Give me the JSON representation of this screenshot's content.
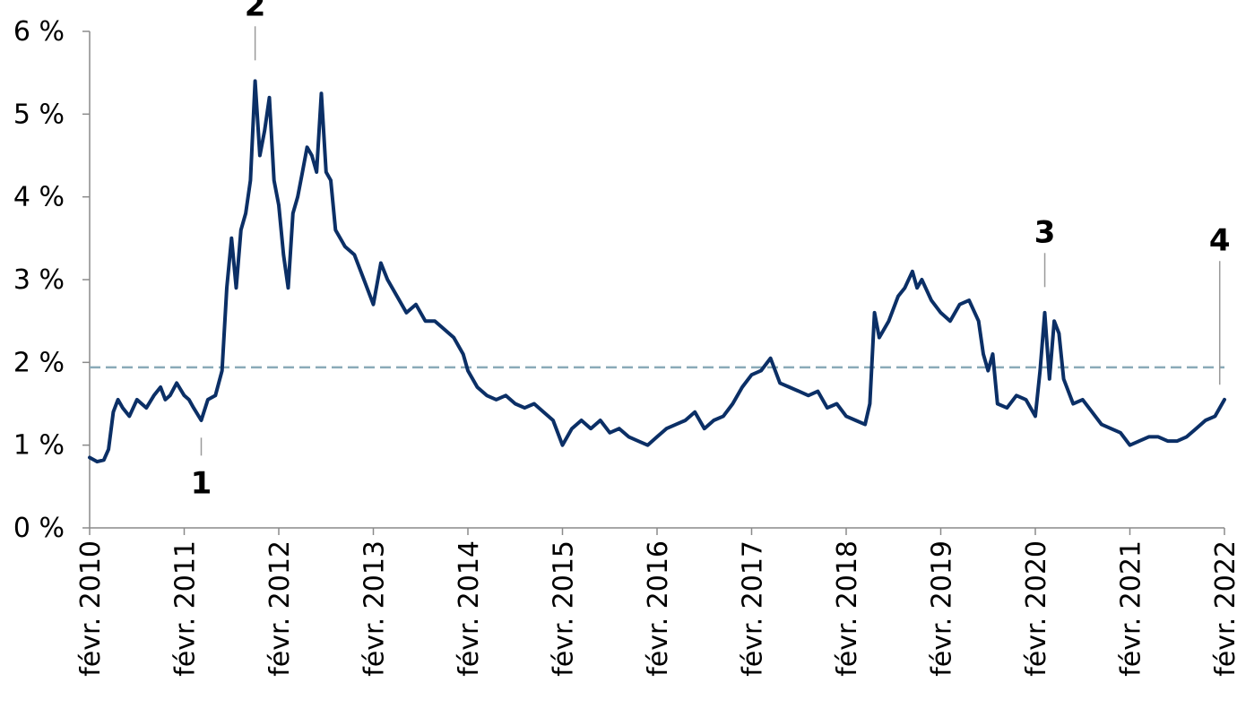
{
  "chart_data": {
    "type": "line",
    "y_tick_labels": [
      "0 %",
      "1 %",
      "2 %",
      "3 %",
      "4 %",
      "5 %",
      "6 %"
    ],
    "ylim": [
      0,
      6
    ],
    "x_tick_labels": [
      "févr. 2010",
      "févr. 2011",
      "févr. 2012",
      "févr. 2013",
      "févr. 2014",
      "févr. 2015",
      "févr. 2016",
      "févr. 2017",
      "févr. 2018",
      "févr. 2019",
      "févr. 2020",
      "févr. 2021",
      "févr. 2022"
    ],
    "xlim": [
      2010.0,
      2022.0
    ],
    "reference_line": {
      "value": 1.94,
      "style": "dashed",
      "color": "#8aaab8"
    },
    "series_color": "#0b2f66",
    "grid": false,
    "annotations": [
      {
        "label": "1",
        "x": 2011.18,
        "y": 1.22,
        "position": "below"
      },
      {
        "label": "2",
        "x": 2011.75,
        "y": 5.52,
        "position": "above"
      },
      {
        "label": "3",
        "x": 2020.1,
        "y": 2.78,
        "position": "above"
      },
      {
        "label": "4",
        "x": 2021.95,
        "y": 1.6,
        "position": "above"
      }
    ],
    "series": [
      {
        "x": [
          2010.0,
          2010.08,
          2010.15,
          2010.2,
          2010.25,
          2010.3,
          2010.35,
          2010.42,
          2010.5,
          2010.55,
          2010.6,
          2010.68,
          2010.75,
          2010.8,
          2010.85,
          2010.92,
          2011.0,
          2011.05,
          2011.1,
          2011.18,
          2011.25,
          2011.33,
          2011.4,
          2011.45,
          2011.5,
          2011.55,
          2011.6,
          2011.65,
          2011.7,
          2011.75,
          2011.8,
          2011.85,
          2011.9,
          2011.95,
          2012.0,
          2012.05,
          2012.1,
          2012.15,
          2012.2,
          2012.25,
          2012.3,
          2012.35,
          2012.4,
          2012.45,
          2012.5,
          2012.55,
          2012.6,
          2012.7,
          2012.8,
          2012.9,
          2013.0,
          2013.08,
          2013.15,
          2013.25,
          2013.35,
          2013.45,
          2013.55,
          2013.65,
          2013.75,
          2013.85,
          2013.95,
          2014.0,
          2014.1,
          2014.2,
          2014.3,
          2014.4,
          2014.5,
          2014.6,
          2014.7,
          2014.8,
          2014.9,
          2015.0,
          2015.1,
          2015.2,
          2015.3,
          2015.4,
          2015.5,
          2015.6,
          2015.7,
          2015.8,
          2015.9,
          2016.0,
          2016.1,
          2016.2,
          2016.3,
          2016.4,
          2016.5,
          2016.6,
          2016.7,
          2016.8,
          2016.9,
          2017.0,
          2017.1,
          2017.2,
          2017.3,
          2017.4,
          2017.5,
          2017.6,
          2017.7,
          2017.8,
          2017.9,
          2018.0,
          2018.1,
          2018.2,
          2018.25,
          2018.3,
          2018.35,
          2018.45,
          2018.55,
          2018.62,
          2018.7,
          2018.75,
          2018.8,
          2018.9,
          2019.0,
          2019.1,
          2019.2,
          2019.3,
          2019.4,
          2019.45,
          2019.5,
          2019.55,
          2019.6,
          2019.7,
          2019.8,
          2019.9,
          2020.0,
          2020.05,
          2020.1,
          2020.15,
          2020.2,
          2020.25,
          2020.3,
          2020.4,
          2020.5,
          2020.6,
          2020.7,
          2020.8,
          2020.9,
          2021.0,
          2021.1,
          2021.2,
          2021.3,
          2021.4,
          2021.5,
          2021.6,
          2021.7,
          2021.8,
          2021.9,
          2022.0
        ],
        "y": [
          0.85,
          0.8,
          0.82,
          0.95,
          1.4,
          1.55,
          1.45,
          1.35,
          1.55,
          1.5,
          1.45,
          1.6,
          1.7,
          1.55,
          1.6,
          1.75,
          1.6,
          1.55,
          1.45,
          1.3,
          1.55,
          1.6,
          1.9,
          2.9,
          3.5,
          2.9,
          3.6,
          3.8,
          4.2,
          5.4,
          4.5,
          4.8,
          5.2,
          4.2,
          3.9,
          3.3,
          2.9,
          3.8,
          4.0,
          4.3,
          4.6,
          4.5,
          4.3,
          5.25,
          4.3,
          4.2,
          3.6,
          3.4,
          3.3,
          3.0,
          2.7,
          3.2,
          3.0,
          2.8,
          2.6,
          2.7,
          2.5,
          2.5,
          2.4,
          2.3,
          2.1,
          1.9,
          1.7,
          1.6,
          1.55,
          1.6,
          1.5,
          1.45,
          1.5,
          1.4,
          1.3,
          1.0,
          1.2,
          1.3,
          1.2,
          1.3,
          1.15,
          1.2,
          1.1,
          1.05,
          1.0,
          1.1,
          1.2,
          1.25,
          1.3,
          1.4,
          1.2,
          1.3,
          1.35,
          1.5,
          1.7,
          1.85,
          1.9,
          2.05,
          1.75,
          1.7,
          1.65,
          1.6,
          1.65,
          1.45,
          1.5,
          1.35,
          1.3,
          1.25,
          1.5,
          2.6,
          2.3,
          2.5,
          2.8,
          2.9,
          3.1,
          2.9,
          3.0,
          2.75,
          2.6,
          2.5,
          2.7,
          2.75,
          2.5,
          2.1,
          1.9,
          2.1,
          1.5,
          1.45,
          1.6,
          1.55,
          1.35,
          1.9,
          2.6,
          1.8,
          2.5,
          2.35,
          1.8,
          1.5,
          1.55,
          1.4,
          1.25,
          1.2,
          1.15,
          1.0,
          1.05,
          1.1,
          1.1,
          1.05,
          1.05,
          1.1,
          1.2,
          1.3,
          1.35,
          1.55
        ]
      }
    ]
  }
}
